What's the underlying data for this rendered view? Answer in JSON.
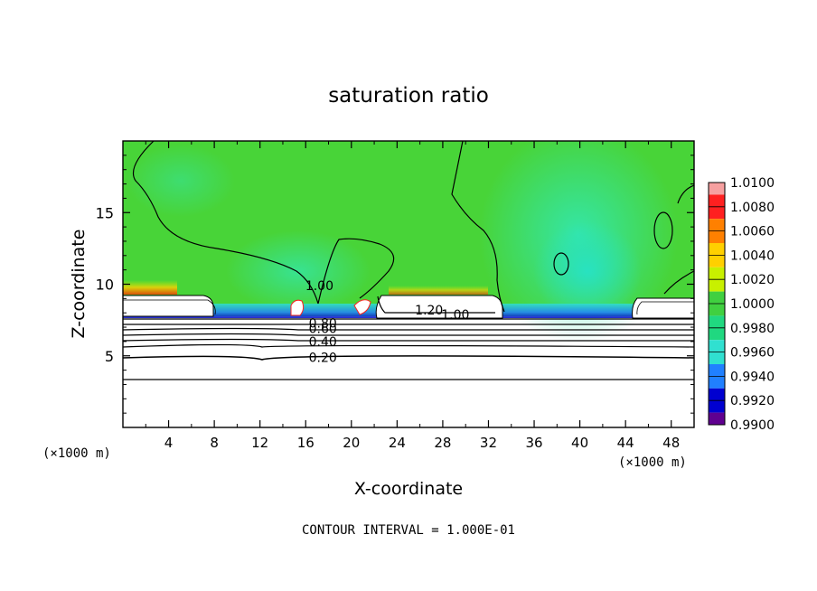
{
  "chart_data": {
    "type": "heatmap",
    "title": "saturation ratio",
    "xlabel": "X-coordinate",
    "ylabel": "Z-coordinate",
    "x_unit_left": "(×1000 m)",
    "x_unit_right": "(×1000 m)",
    "xlim": [
      0,
      50
    ],
    "ylim": [
      0,
      20
    ],
    "x_ticks": [
      4,
      8,
      12,
      16,
      20,
      24,
      28,
      32,
      36,
      40,
      44,
      48
    ],
    "x_tick_labels": [
      "4",
      "8",
      "12",
      "16",
      "20",
      "24",
      "28",
      "32",
      "36",
      "40",
      "44",
      "48"
    ],
    "y_ticks": [
      5,
      10,
      15
    ],
    "y_tick_labels": [
      "5",
      "10",
      "15"
    ],
    "colorbar": {
      "min": 0.99,
      "max": 1.01,
      "step": 0.002,
      "labels": [
        "1.0100",
        "1.0080",
        "1.0060",
        "1.0040",
        "1.0020",
        "1.0000",
        "0.9980",
        "0.9960",
        "0.9940",
        "0.9920",
        "0.9900"
      ],
      "colors": [
        "#f6a0a0",
        "#ff2020",
        "#ff8000",
        "#ffd000",
        "#c8f000",
        "#40d040",
        "#20d880",
        "#30e0d0",
        "#2080ff",
        "#0000d0",
        "#600090"
      ]
    },
    "contour_labels": [
      {
        "text": "1.00",
        "x": 17.2,
        "y": 9.9
      },
      {
        "text": "1.20",
        "x": 26.8,
        "y": 8.2
      },
      {
        "text": "1.00",
        "x": 29.1,
        "y": 7.9
      },
      {
        "text": "0.80",
        "x": 17.5,
        "y": 7.3
      },
      {
        "text": "0.60",
        "x": 17.5,
        "y": 6.9
      },
      {
        "text": "0.40",
        "x": 17.5,
        "y": 6.0
      },
      {
        "text": "0.20",
        "x": 17.5,
        "y": 4.9
      }
    ],
    "contour_interval_text": "CONTOUR INTERVAL = 1.000E-01"
  }
}
